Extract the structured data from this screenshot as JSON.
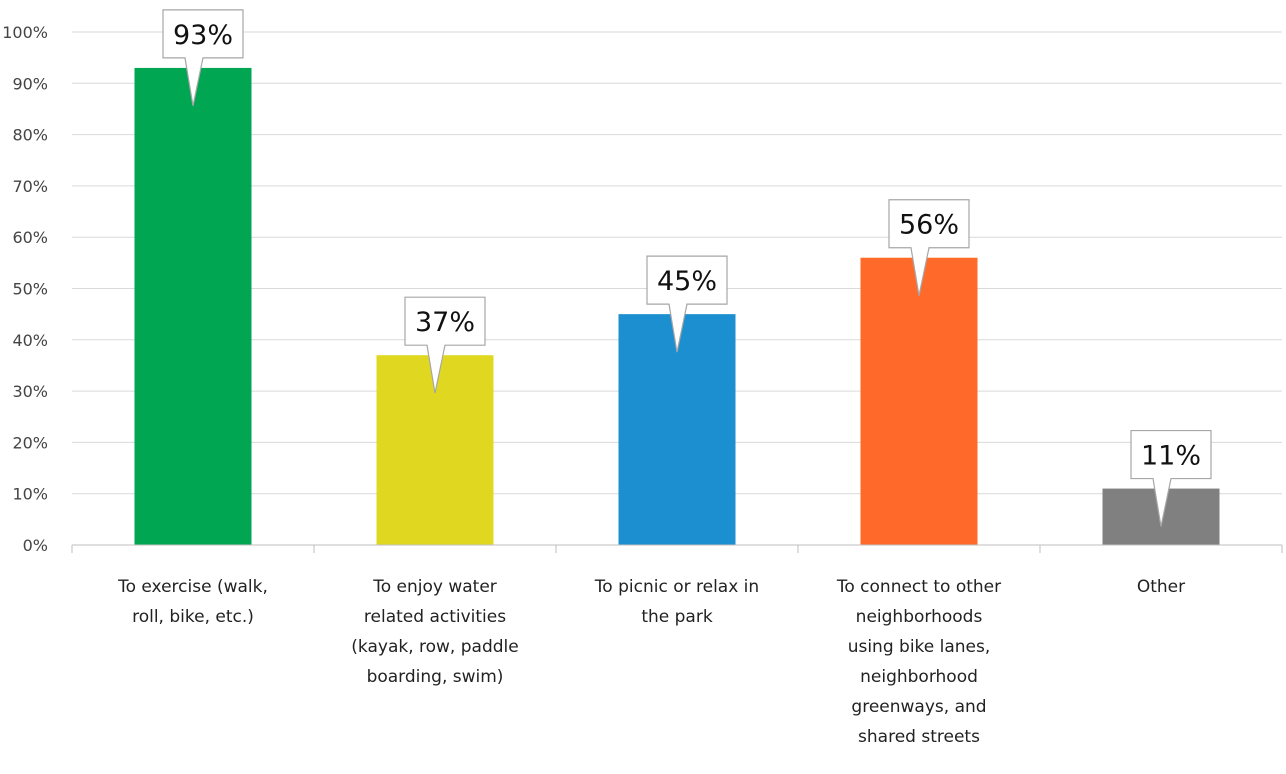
{
  "chart_data": {
    "type": "bar",
    "title": "",
    "xlabel": "",
    "ylabel": "",
    "ylim": [
      0,
      100
    ],
    "y_ticks": [
      "0%",
      "10%",
      "20%",
      "30%",
      "40%",
      "50%",
      "60%",
      "70%",
      "80%",
      "90%",
      "100%"
    ],
    "y_tick_values": [
      0,
      10,
      20,
      30,
      40,
      50,
      60,
      70,
      80,
      90,
      100
    ],
    "grid": true,
    "legend": "none",
    "categories": [
      [
        "To exercise (walk,",
        "roll, bike, etc.)"
      ],
      [
        "To enjoy water",
        "related activities",
        "(kayak, row, paddle",
        "boarding, swim)"
      ],
      [
        "To picnic or relax in",
        "the park"
      ],
      [
        "To connect to other",
        "neighborhoods",
        "using bike lanes,",
        "neighborhood",
        "greenways, and",
        "shared streets"
      ],
      [
        "Other"
      ]
    ],
    "values": [
      93,
      37,
      45,
      56,
      11
    ],
    "data_labels": [
      "93%",
      "37%",
      "45%",
      "56%",
      "11%"
    ],
    "colors": [
      "#00a651",
      "#e0d820",
      "#1b8fcf",
      "#ff6a2b",
      "#808080"
    ]
  }
}
